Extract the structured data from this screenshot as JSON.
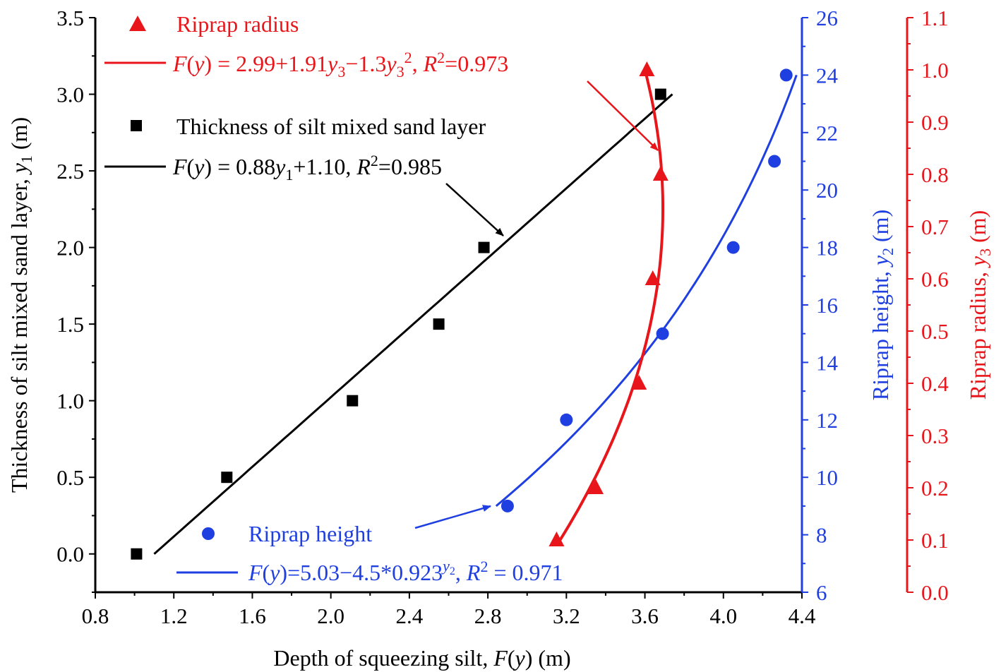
{
  "chart_data": {
    "type": "scatter",
    "title": "",
    "xlabel": {
      "prefix": "Depth of squeezing silt, ",
      "F": "F",
      "open": "(",
      "var": "y",
      "close": ")",
      "unit": " (m)"
    },
    "xlim": [
      0.8,
      4.4
    ],
    "xticks": [
      "0.8",
      "1.2",
      "1.6",
      "2.0",
      "2.4",
      "2.8",
      "3.2",
      "3.6",
      "4.0",
      "4.4"
    ],
    "axes": {
      "y1": {
        "label": {
          "text": "Thickness of silt mixed sand layer, ",
          "var": "y",
          "sub": "1",
          "unit": " (m)"
        },
        "ylim": [
          -0.25,
          3.5
        ],
        "ticks": [
          "0.0",
          "0.5",
          "1.0",
          "1.5",
          "2.0",
          "2.5",
          "3.0",
          "3.5"
        ],
        "color": "#000000"
      },
      "y2": {
        "label": {
          "text": "Riprap height, ",
          "var": "y",
          "sub": "2",
          "unit": " (m)"
        },
        "ylim": [
          6,
          26
        ],
        "ticks": [
          "6",
          "8",
          "10",
          "12",
          "14",
          "16",
          "18",
          "20",
          "22",
          "24",
          "26"
        ],
        "color": "#1f3fe0"
      },
      "y3": {
        "label": {
          "text": "Riprap radius, ",
          "var": "y",
          "sub": "3",
          "unit": " (m)"
        },
        "ylim": [
          0.0,
          1.1
        ],
        "ticks": [
          "0.0",
          "0.1",
          "0.2",
          "0.3",
          "0.4",
          "0.5",
          "0.6",
          "0.7",
          "0.8",
          "0.9",
          "1.0",
          "1.1"
        ],
        "color": "#e8161b"
      }
    },
    "series": [
      {
        "name": "Thickness of silt mixed sand layer",
        "axis": "y1",
        "marker": "square",
        "color": "#000000",
        "x": [
          1.01,
          1.47,
          2.11,
          2.55,
          2.78,
          3.68
        ],
        "y": [
          0.0,
          0.5,
          1.0,
          1.5,
          2.0,
          3.0
        ],
        "fit": {
          "kind": "linear",
          "a": 0.88,
          "b": 1.1,
          "yrange": [
            0.0,
            3.0
          ]
        }
      },
      {
        "name": "Riprap height",
        "axis": "y2",
        "marker": "circle",
        "color": "#1f3fe0",
        "x": [
          2.9,
          3.2,
          3.69,
          4.05,
          4.26,
          4.32
        ],
        "y": [
          9.0,
          12.0,
          15.0,
          18.0,
          21.0,
          24.0
        ],
        "fit": {
          "kind": "exp",
          "a": 5.03,
          "b": 4.5,
          "c": 0.923,
          "yrange": [
            9.0,
            24.0
          ]
        }
      },
      {
        "name": "Riprap radius",
        "axis": "y3",
        "marker": "triangle",
        "color": "#e8161b",
        "x": [
          3.15,
          3.35,
          3.57,
          3.64,
          3.68,
          3.61
        ],
        "y": [
          0.1,
          0.2,
          0.4,
          0.6,
          0.8,
          1.0
        ],
        "fit": {
          "kind": "quadratic",
          "a": 2.99,
          "b": 1.91,
          "c": 1.3,
          "yrange": [
            0.1,
            1.0
          ]
        }
      }
    ],
    "legend": {
      "red_marker_label": "Riprap radius",
      "red_fit": {
        "lhs_F": "F",
        "lhs_open": "(",
        "lhs_var": "y",
        "lhs_close": ")",
        "eq": " = 2.99+1.91",
        "v1": "y",
        "s1": "3",
        "mid": "−1.3",
        "v2": "y",
        "s2": "3",
        "sup2": "2",
        "comma": ", ",
        "r": "R",
        "rsup": "2",
        "rval": "=0.973"
      },
      "black_marker_label": "Thickness of silt mixed sand layer",
      "black_fit": {
        "lhs_F": "F",
        "lhs_open": "(",
        "lhs_var": "y",
        "lhs_close": ")",
        "eq": " = 0.88",
        "v1": "y",
        "s1": "1",
        "tail": "+1.10, ",
        "r": "R",
        "rsup": "2",
        "rval": "=0.985"
      },
      "blue_marker_label": "Riprap height",
      "blue_fit": {
        "lhs_F": "F",
        "lhs_open": "(",
        "lhs_var": "y",
        "lhs_close": ")",
        "eq": "=5.03−4.5*0.923",
        "supv": "y",
        "supsub": "2",
        "comma": ", ",
        "r": "R",
        "rsup": "2",
        "rval": " = 0.971"
      }
    },
    "annotations": [
      {
        "target": "red fit curve",
        "color": "#e8161b"
      },
      {
        "target": "black fit line",
        "color": "#000000"
      },
      {
        "target": "blue fit curve",
        "color": "#1f3fe0"
      }
    ]
  }
}
